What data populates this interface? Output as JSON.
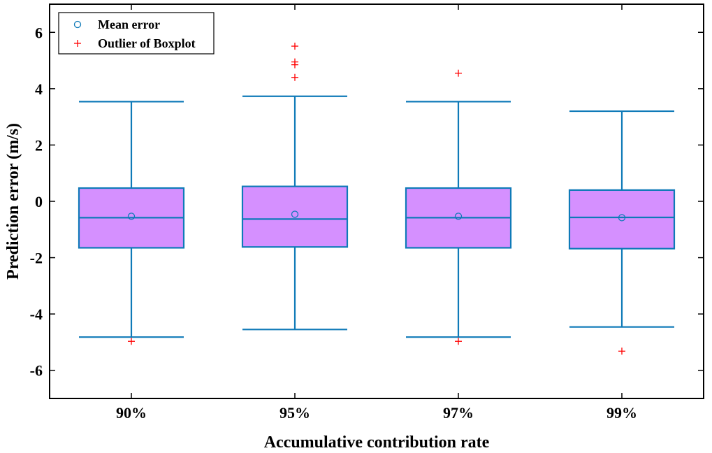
{
  "chart_data": {
    "type": "boxplot",
    "xlabel": "Accumulative contribution rate",
    "ylabel": "Prediction error (m/s)",
    "categories": [
      "90%",
      "95%",
      "97%",
      "99%"
    ],
    "ylim": [
      -7,
      7
    ],
    "yticks": [
      -6,
      -4,
      -2,
      0,
      2,
      4,
      6
    ],
    "grid": false,
    "legend_position": "top-left",
    "legend": {
      "mean": "Mean error",
      "outlier": "Outlier of Boxplot"
    },
    "boxes": [
      {
        "category": "90%",
        "whisker_low": -4.82,
        "q1": -1.65,
        "median": -0.58,
        "q3": 0.47,
        "whisker_high": 3.54,
        "mean": -0.53,
        "outliers": [
          -4.97
        ]
      },
      {
        "category": "95%",
        "whisker_low": -4.55,
        "q1": -1.62,
        "median": -0.63,
        "q3": 0.53,
        "whisker_high": 3.73,
        "mean": -0.46,
        "outliers": [
          5.51,
          4.95,
          4.85,
          4.4
        ]
      },
      {
        "category": "97%",
        "whisker_low": -4.82,
        "q1": -1.65,
        "median": -0.58,
        "q3": 0.47,
        "whisker_high": 3.54,
        "mean": -0.53,
        "outliers": [
          -4.97,
          4.55
        ]
      },
      {
        "category": "99%",
        "whisker_low": -4.46,
        "q1": -1.68,
        "median": -0.57,
        "q3": 0.4,
        "whisker_high": 3.2,
        "mean": -0.58,
        "outliers": [
          -5.32
        ]
      }
    ],
    "colors": {
      "box_fill": "#d590ff",
      "box_stroke": "#0f7ab8",
      "mean_marker": "#0f7ab8",
      "outlier_marker": "#ff0000",
      "axis": "#000000"
    }
  }
}
